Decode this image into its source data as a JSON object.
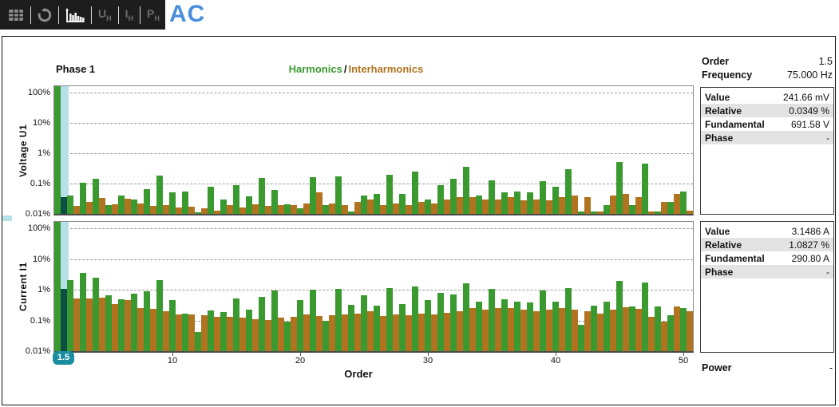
{
  "header": {
    "title": "AC"
  },
  "toolbar": {
    "buttons": {
      "uh": {
        "main": "U",
        "sub": "H"
      },
      "ih": {
        "main": "I",
        "sub": "H"
      },
      "ph": {
        "main": "P",
        "sub": "H"
      }
    }
  },
  "colors": {
    "harmonic": "#3a9a2f",
    "interharmonic": "#b1731f",
    "selected_bar": "#0b4e43",
    "cursor": "#b7e0ea",
    "badge": "#1b8da1",
    "accent_blue": "#4b8edb"
  },
  "charts": {
    "phase_label": "Phase 1",
    "legend": {
      "harmonics": "Harmonics",
      "separator": "/",
      "interharmonics": "Interharmonics"
    },
    "xlabel": "Order",
    "x_ticks": [
      10,
      20,
      30,
      40,
      50
    ],
    "selection_badge": "1.5"
  },
  "chart_data": [
    {
      "type": "bar",
      "name": "voltage-harmonics",
      "ylabel": "Voltage U1",
      "yscale": "log",
      "ylim_percent": [
        0.01,
        100
      ],
      "ytick_labels": [
        "100%",
        "10%",
        "1%",
        "0.1%",
        "0.01%"
      ],
      "ytick_values": [
        100,
        10,
        1,
        0.1,
        0.01
      ],
      "selected_order": 1.5,
      "series": [
        {
          "name": "Harmonics",
          "orders_start": 1,
          "step": 1,
          "values": [
            100,
            0.04,
            0.105,
            0.14,
            0.019,
            0.04,
            0.03,
            0.065,
            0.18,
            0.05,
            0.055,
            0.011,
            0.08,
            0.03,
            0.087,
            0.037,
            0.15,
            0.06,
            0.021,
            0.015,
            0.16,
            0.02,
            0.17,
            0.012,
            0.04,
            0.045,
            0.2,
            0.045,
            0.25,
            0.03,
            0.09,
            0.14,
            0.35,
            0.04,
            0.13,
            0.05,
            0.055,
            0.05,
            0.12,
            0.08,
            0.3,
            0.012,
            0.012,
            0.02,
            0.5,
            0.02,
            0.45,
            0.012,
            0.025,
            0.055
          ]
        },
        {
          "name": "Interharmonics",
          "orders_start": 1.5,
          "step": 1,
          "values": [
            0.0349,
            0.018,
            0.025,
            0.033,
            0.021,
            0.032,
            0.022,
            0.018,
            0.019,
            0.016,
            0.017,
            0.015,
            0.013,
            0.02,
            0.016,
            0.021,
            0.018,
            0.02,
            0.02,
            0.022,
            0.05,
            0.022,
            0.02,
            0.025,
            0.03,
            0.02,
            0.022,
            0.02,
            0.025,
            0.022,
            0.03,
            0.035,
            0.035,
            0.03,
            0.03,
            0.035,
            0.028,
            0.03,
            0.028,
            0.035,
            0.04,
            0.035,
            0.012,
            0.04,
            0.045,
            0.035,
            0.012,
            0.025,
            0.045,
            0.013
          ]
        }
      ]
    },
    {
      "type": "bar",
      "name": "current-harmonics",
      "ylabel": "Current I1",
      "yscale": "log",
      "ylim_percent": [
        0.01,
        100
      ],
      "ytick_labels": [
        "100%",
        "10%",
        "1%",
        "0.1%",
        "0.01%"
      ],
      "ytick_values": [
        100,
        10,
        1,
        0.1,
        0.01
      ],
      "selected_order": 1.5,
      "series": [
        {
          "name": "Harmonics",
          "orders_start": 1,
          "step": 1,
          "values": [
            100,
            2.0,
            3.6,
            2.4,
            0.65,
            0.48,
            0.74,
            0.88,
            2.0,
            0.47,
            0.17,
            0.042,
            0.21,
            0.19,
            0.52,
            0.22,
            0.6,
            0.95,
            0.09,
            0.45,
            1.0,
            0.1,
            1.05,
            0.33,
            0.65,
            0.3,
            1.15,
            0.35,
            1.3,
            0.45,
            0.8,
            0.7,
            1.6,
            0.4,
            1.05,
            0.5,
            0.42,
            0.38,
            0.95,
            0.4,
            1.1,
            0.07,
            0.3,
            0.4,
            1.9,
            0.28,
            1.75,
            0.28,
            0.15,
            0.25
          ]
        },
        {
          "name": "Interharmonics",
          "orders_start": 1.5,
          "step": 1,
          "values": [
            1.0827,
            0.52,
            0.52,
            0.55,
            0.34,
            0.45,
            0.26,
            0.24,
            0.2,
            0.16,
            0.16,
            0.15,
            0.13,
            0.13,
            0.12,
            0.11,
            0.105,
            0.12,
            0.13,
            0.16,
            0.14,
            0.15,
            0.16,
            0.17,
            0.2,
            0.14,
            0.16,
            0.15,
            0.17,
            0.16,
            0.18,
            0.2,
            0.25,
            0.22,
            0.25,
            0.25,
            0.22,
            0.2,
            0.22,
            0.25,
            0.23,
            0.2,
            0.17,
            0.23,
            0.27,
            0.24,
            0.13,
            0.09,
            0.29,
            0.2
          ]
        }
      ]
    }
  ],
  "panel": {
    "order_label": "Order",
    "order_value": "1.5",
    "frequency_label": "Frequency",
    "frequency_value": "75.000 Hz",
    "voltage": {
      "rows": [
        {
          "label": "Value",
          "value": "241.66 mV"
        },
        {
          "label": "Relative",
          "value": "0.0349 %"
        },
        {
          "label": "Fundamental",
          "value": "691.58 V"
        },
        {
          "label": "Phase",
          "value": "-"
        }
      ]
    },
    "current": {
      "rows": [
        {
          "label": "Value",
          "value": "3.1486 A"
        },
        {
          "label": "Relative",
          "value": "1.0827 %"
        },
        {
          "label": "Fundamental",
          "value": "290.80 A"
        },
        {
          "label": "Phase",
          "value": "-"
        }
      ]
    },
    "power_label": "Power",
    "power_value": "-"
  }
}
